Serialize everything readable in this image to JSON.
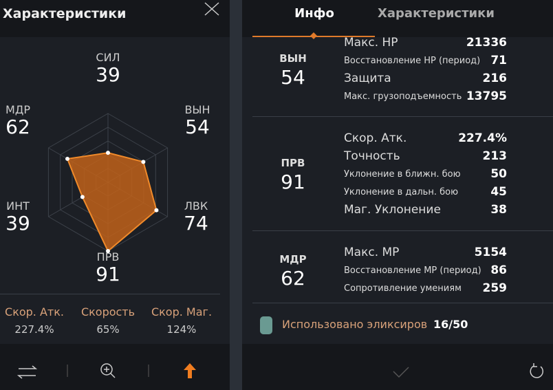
{
  "left": {
    "title": "Характеристики",
    "radar": [
      {
        "label": "СИЛ",
        "value": 39
      },
      {
        "label": "ВЫН",
        "value": 54
      },
      {
        "label": "ЛВК",
        "value": 74
      },
      {
        "label": "ПРВ",
        "value": 91
      },
      {
        "label": "ИНТ",
        "value": 39
      },
      {
        "label": "МДР",
        "value": 62
      }
    ],
    "stats": [
      {
        "label": "Скор. Атк.",
        "value": "227.4%"
      },
      {
        "label": "Скорость",
        "value": "65%"
      },
      {
        "label": "Скор. Маг.",
        "value": "124%"
      }
    ]
  },
  "right": {
    "tabs": [
      "Инфо",
      "Характеристики"
    ],
    "groups": [
      {
        "stat": "ВЫН",
        "value": 54,
        "rows": [
          {
            "label": "Макс. HP",
            "value": 21336
          },
          {
            "label": "Восстановление HP (период)",
            "value": 71
          },
          {
            "label": "Защита",
            "value": 216
          },
          {
            "label": "Макс. грузоподъемность",
            "value": 13795
          }
        ]
      },
      {
        "stat": "ПРВ",
        "value": 91,
        "rows": [
          {
            "label": "Скор. Атк.",
            "value": "227.4%"
          },
          {
            "label": "Точность",
            "value": 213
          },
          {
            "label": "Уклонение в ближн. бою",
            "value": 50
          },
          {
            "label": "Уклонение в дальн. бою",
            "value": 45
          },
          {
            "label": "Маг. Уклонение",
            "value": 38
          }
        ]
      },
      {
        "stat": "МДР",
        "value": 62,
        "rows": [
          {
            "label": "Макс. MP",
            "value": 5154
          },
          {
            "label": "Восстановление MP (период)",
            "value": 86
          },
          {
            "label": "Сопротивление умениям",
            "value": 259
          }
        ]
      }
    ],
    "footer": {
      "label": "Использовано эликсиров",
      "value": "16/50"
    }
  }
}
